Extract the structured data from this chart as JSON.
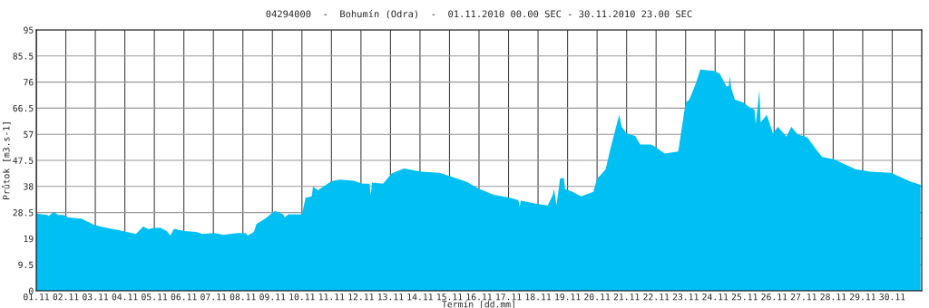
{
  "chart_data": {
    "type": "area",
    "title": "04294000  -  Bohumín (Odra)  -  01.11.2010 00.00 SEC - 30.11.2010 23.00 SEC",
    "xlabel": "Termín [dd.mm]",
    "ylabel": "Průtok [m3.s-1]",
    "xlim": [
      "2010-11-01T00:00",
      "2010-12-01T00:00"
    ],
    "ylim": [
      0,
      95
    ],
    "xticks": [
      {
        "value": "2010-11-01",
        "label": "01.11"
      },
      {
        "value": "2010-11-02",
        "label": "02.11"
      },
      {
        "value": "2010-11-03",
        "label": "03.11"
      },
      {
        "value": "2010-11-04",
        "label": "04.11"
      },
      {
        "value": "2010-11-05",
        "label": "05.11"
      },
      {
        "value": "2010-11-06",
        "label": "06.11"
      },
      {
        "value": "2010-11-07",
        "label": "07.11"
      },
      {
        "value": "2010-11-08",
        "label": "08.11"
      },
      {
        "value": "2010-11-09",
        "label": "09.11"
      },
      {
        "value": "2010-11-10",
        "label": "10.11"
      },
      {
        "value": "2010-11-11",
        "label": "11.11"
      },
      {
        "value": "2010-11-12",
        "label": "12.11"
      },
      {
        "value": "2010-11-13",
        "label": "13.11"
      },
      {
        "value": "2010-11-14",
        "label": "14.11"
      },
      {
        "value": "2010-11-15",
        "label": "15.11"
      },
      {
        "value": "2010-11-16",
        "label": "16.11"
      },
      {
        "value": "2010-11-17",
        "label": "17.11"
      },
      {
        "value": "2010-11-18",
        "label": "18.11"
      },
      {
        "value": "2010-11-19",
        "label": "19.11"
      },
      {
        "value": "2010-11-20",
        "label": "20.11"
      },
      {
        "value": "2010-11-21",
        "label": "21.11"
      },
      {
        "value": "2010-11-22",
        "label": "22.11"
      },
      {
        "value": "2010-11-23",
        "label": "23.11"
      },
      {
        "value": "2010-11-24",
        "label": "24.11"
      },
      {
        "value": "2010-11-25",
        "label": "25.11"
      },
      {
        "value": "2010-11-26",
        "label": "26.11"
      },
      {
        "value": "2010-11-27",
        "label": "27.11"
      },
      {
        "value": "2010-11-28",
        "label": "28.11"
      },
      {
        "value": "2010-11-29",
        "label": "29.11"
      },
      {
        "value": "2010-11-30",
        "label": "30.11"
      }
    ],
    "yticks": [
      0,
      9.5,
      19,
      28.5,
      38,
      47.5,
      57,
      66.5,
      76,
      85.5,
      95
    ],
    "grid": true,
    "series": [
      {
        "color": "#00bff3",
        "x": [
          "2010-11-01T00:00",
          "2010-11-01T09:00",
          "2010-11-01T10:00",
          "2010-11-01T14:00",
          "2010-11-01T18:00",
          "2010-11-01T22:00",
          "2010-11-02T02:00",
          "2010-11-02T13:00",
          "2010-11-02T23:00",
          "2010-11-03T09:00",
          "2010-11-03T19:00",
          "2010-11-04T04:00",
          "2010-11-04T09:00",
          "2010-11-04T15:00",
          "2010-11-04T19:00",
          "2010-11-05T00:00",
          "2010-11-05T05:00",
          "2010-11-05T10:00",
          "2010-11-05T13:00",
          "2010-11-05T16:00",
          "2010-11-06T00:00",
          "2010-11-06T10:00",
          "2010-11-06T15:00",
          "2010-11-07T01:00",
          "2010-11-07T08:00",
          "2010-11-07T20:00",
          "2010-11-08T02:00",
          "2010-11-08T04:00",
          "2010-11-08T09:00",
          "2010-11-08T11:00",
          "2010-11-08T18:00",
          "2010-11-09T02:00",
          "2010-11-09T09:00",
          "2010-11-09T10:00",
          "2010-11-09T13:00",
          "2010-11-10T00:00",
          "2010-11-10T03:00",
          "2010-11-10T08:00",
          "2010-11-10T09:00",
          "2010-11-10T13:00",
          "2010-11-11T00:00",
          "2010-11-11T07:00",
          "2010-11-11T18:00",
          "2010-11-12T01:00",
          "2010-11-12T07:00",
          "2010-11-12T08:00",
          "2010-11-12T09:00",
          "2010-11-12T18:00",
          "2010-11-13T01:00",
          "2010-11-13T11:00",
          "2010-11-14T01:00",
          "2010-11-14T16:00",
          "2010-11-15T02:00",
          "2010-11-15T14:00",
          "2010-11-16T00:00",
          "2010-11-16T12:00",
          "2010-11-17T01:00",
          "2010-11-17T08:00",
          "2010-11-17T09:00",
          "2010-11-17T10:00",
          "2010-11-17T23:00",
          "2010-11-18T08:00",
          "2010-11-18T12:00",
          "2010-11-18T13:00",
          "2010-11-18T15:00",
          "2010-11-18T18:00",
          "2010-11-18T21:00",
          "2010-11-18T22:00",
          "2010-11-19T04:00",
          "2010-11-19T11:00",
          "2010-11-19T21:00",
          "2010-11-20T00:00",
          "2010-11-20T04:00",
          "2010-11-20T07:00",
          "2010-11-20T11:00",
          "2010-11-20T18:00",
          "2010-11-20T20:00",
          "2010-11-21T00:00",
          "2010-11-21T07:00",
          "2010-11-21T11:00",
          "2010-11-21T20:00",
          "2010-11-22T00:00",
          "2010-11-22T07:00",
          "2010-11-22T18:00",
          "2010-11-23T00:00",
          "2010-11-23T03:00",
          "2010-11-23T08:00",
          "2010-11-23T12:00",
          "2010-11-24T00:00",
          "2010-11-24T04:00",
          "2010-11-24T09:00",
          "2010-11-24T11:00",
          "2010-11-24T12:00",
          "2010-11-24T13:00",
          "2010-11-24T16:00",
          "2010-11-24T23:00",
          "2010-11-25T04:00",
          "2010-11-25T08:00",
          "2010-11-25T09:00",
          "2010-11-25T12:00",
          "2010-11-25T13:00",
          "2010-11-25T18:00",
          "2010-11-25T23:00",
          "2010-11-26T03:00",
          "2010-11-26T10:00",
          "2010-11-26T14:00",
          "2010-11-26T19:00",
          "2010-11-27T03:00",
          "2010-11-27T10:00",
          "2010-11-27T15:00",
          "2010-11-28T01:00",
          "2010-11-28T10:00",
          "2010-11-28T18:00",
          "2010-11-29T06:00",
          "2010-11-29T23:00",
          "2010-11-30T06:00",
          "2010-11-30T14:00",
          "2010-11-30T23:00"
        ],
        "values": [
          28.1,
          27.6,
          27.2,
          28.7,
          27.6,
          27.6,
          26.7,
          26.2,
          24.0,
          22.9,
          22.1,
          21.2,
          20.7,
          23.4,
          22.4,
          22.9,
          22.9,
          21.8,
          20.1,
          22.6,
          21.8,
          21.4,
          20.7,
          21.0,
          20.4,
          21.0,
          21.0,
          20.1,
          21.4,
          24.3,
          26.2,
          29.1,
          27.8,
          26.7,
          27.9,
          27.8,
          33.9,
          34.4,
          37.9,
          36.6,
          39.9,
          40.5,
          40.1,
          39.0,
          39.0,
          35.0,
          39.4,
          39.0,
          42.7,
          44.5,
          43.4,
          43.0,
          41.5,
          39.7,
          37.1,
          35.0,
          33.9,
          33.0,
          30.6,
          32.8,
          31.7,
          31.1,
          35.0,
          37.1,
          31.1,
          41.0,
          41.0,
          37.1,
          36.0,
          34.4,
          36.0,
          40.8,
          42.7,
          44.3,
          52.0,
          64.1,
          59.7,
          57.3,
          56.4,
          53.3,
          53.3,
          52.2,
          50.0,
          50.7,
          68.5,
          69.6,
          75.1,
          80.6,
          80.0,
          78.9,
          74.5,
          74.5,
          78.2,
          74.0,
          69.6,
          68.5,
          66.8,
          66.0,
          60.6,
          73.1,
          61.3,
          64.1,
          57.3,
          59.7,
          56.2,
          59.7,
          57.0,
          55.8,
          51.5,
          48.7,
          47.8,
          45.9,
          44.3,
          43.4,
          43.0,
          41.6,
          39.9,
          38.6
        ]
      }
    ]
  }
}
